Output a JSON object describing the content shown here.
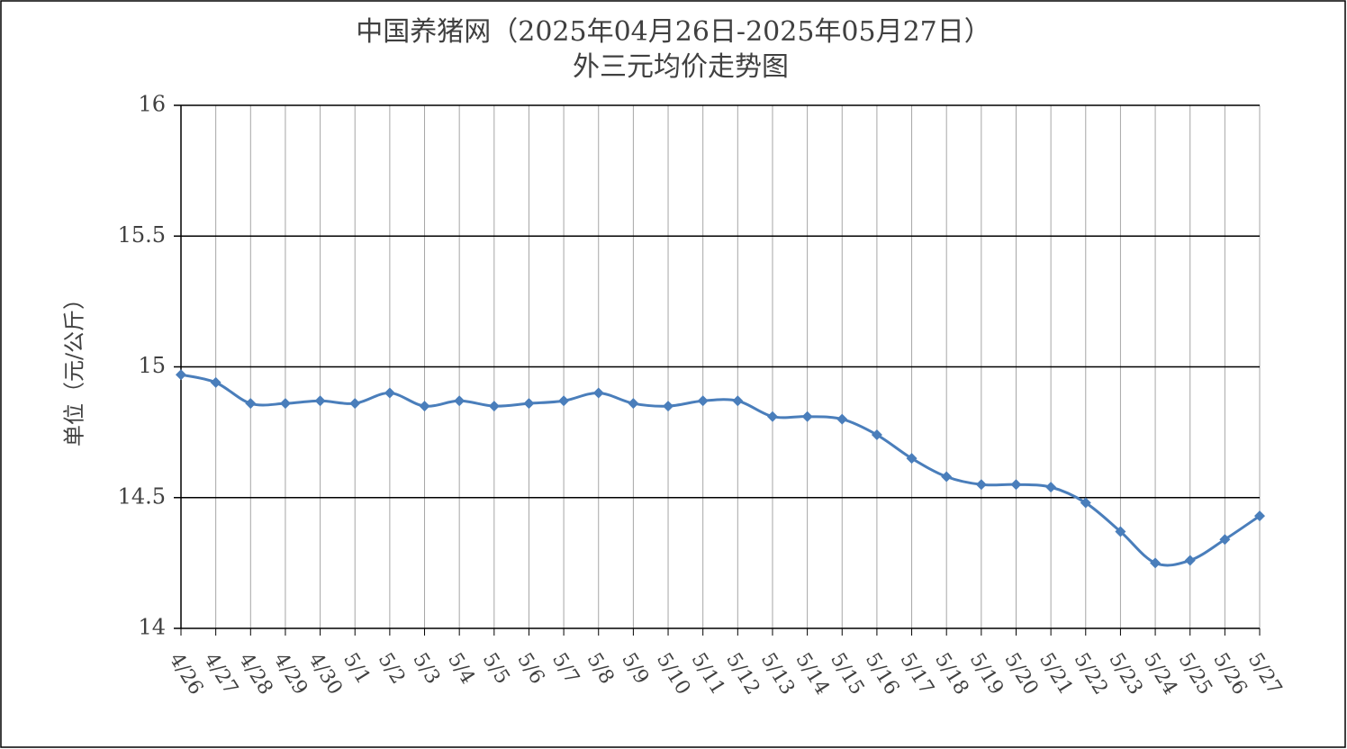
{
  "chart_data": {
    "type": "line",
    "title": "中国养猪网（2025年04月26日-2025年05月27日）",
    "subtitle": "外三元均价走势图",
    "y_label": "单位（元/公斤）",
    "categories": [
      "4/26",
      "4/27",
      "4/28",
      "4/29",
      "4/30",
      "5/1",
      "5/2",
      "5/3",
      "5/4",
      "5/5",
      "5/6",
      "5/7",
      "5/8",
      "5/9",
      "5/10",
      "5/11",
      "5/12",
      "5/13",
      "5/14",
      "5/15",
      "5/16",
      "5/17",
      "5/18",
      "5/19",
      "5/20",
      "5/21",
      "5/22",
      "5/23",
      "5/24",
      "5/25",
      "5/26",
      "5/27"
    ],
    "values": [
      14.97,
      14.94,
      14.86,
      14.86,
      14.87,
      14.86,
      14.9,
      14.85,
      14.87,
      14.85,
      14.86,
      14.87,
      14.9,
      14.86,
      14.85,
      14.87,
      14.87,
      14.81,
      14.81,
      14.8,
      14.74,
      14.65,
      14.58,
      14.55,
      14.55,
      14.54,
      14.48,
      14.37,
      14.25,
      14.26,
      14.34,
      14.43
    ],
    "color": "#4a7ebb",
    "ylim": [
      14,
      16
    ],
    "yticks": [
      14,
      14.5,
      15,
      15.5,
      16
    ],
    "grid": true
  }
}
